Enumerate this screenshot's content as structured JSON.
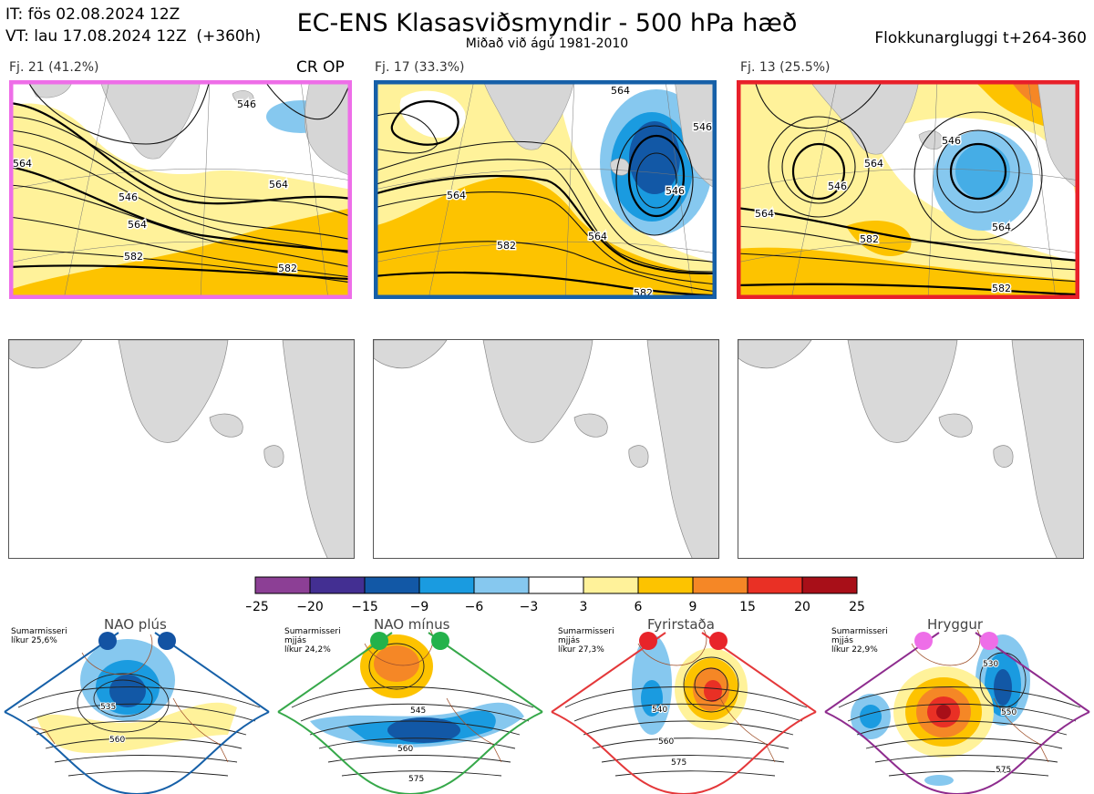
{
  "header": {
    "init_time": "IT: fös 02.08.2024 12Z",
    "valid_time": "VT: lau 17.08.2024 12Z  (+360h)",
    "title": "EC-ENS Klasasviðsmyndir - 500 hPa hæð",
    "subtitle": "Miðað við ágú 1981-2010",
    "window": "Flokkunargluggi t+264-360"
  },
  "clusters": [
    {
      "label": "Fj. 21 (41.2%)",
      "tag": "CR OP",
      "border_color": "#ee6ee8",
      "contour_labels": [
        "546",
        "564",
        "546",
        "564",
        "582",
        "564",
        "582"
      ]
    },
    {
      "label": "Fj. 17 (33.3%)",
      "tag": "",
      "border_color": "#1660a8",
      "contour_labels": [
        "564",
        "546",
        "564",
        "582",
        "564",
        "546",
        "582"
      ]
    },
    {
      "label": "Fj. 13 (25.5%)",
      "tag": "",
      "border_color": "#e8202a",
      "contour_labels": [
        "546",
        "564",
        "546",
        "564",
        "582",
        "564",
        "582"
      ]
    }
  ],
  "colorbar": {
    "ticks": [
      "−25",
      "−20",
      "−15",
      "−9",
      "−6",
      "−3",
      "3",
      "6",
      "9",
      "15",
      "20",
      "25"
    ],
    "colors": [
      "#8c3f95",
      "#432f92",
      "#1258a6",
      "#1a9be0",
      "#86c8ef",
      "#ffffff",
      "#fff29a",
      "#fdc300",
      "#f58726",
      "#e93025",
      "#a80f18"
    ]
  },
  "regimes": [
    {
      "name": "NAO plús",
      "season": "Sumarmisseri",
      "season2": "mjjás",
      "prob": "líkur 25,6%",
      "dot_color": "#1353a3",
      "border_color": "#1660a8",
      "labels": [
        "535",
        "560"
      ]
    },
    {
      "name": "NAO mínus",
      "season": "Sumarmisseri",
      "season2": "mjjás",
      "prob": "líkur 24,2%",
      "dot_color": "#24b24b",
      "border_color": "#36a84a",
      "labels": [
        "545",
        "560",
        "575"
      ]
    },
    {
      "name": "Fyrirstaða",
      "season": "Sumarmisseri",
      "season2": "mjjás",
      "prob": "líkur 27,3%",
      "dot_color": "#e8242a",
      "border_color": "#e4383a",
      "labels": [
        "540",
        "560",
        "575"
      ]
    },
    {
      "name": "Hryggur",
      "season": "Sumarmisseri",
      "season2": "mjjás",
      "prob": "líkur 22,9%",
      "dot_color": "#ee6ee8",
      "border_color": "#8e2c8e",
      "labels": [
        "530",
        "550",
        "575"
      ]
    }
  ]
}
